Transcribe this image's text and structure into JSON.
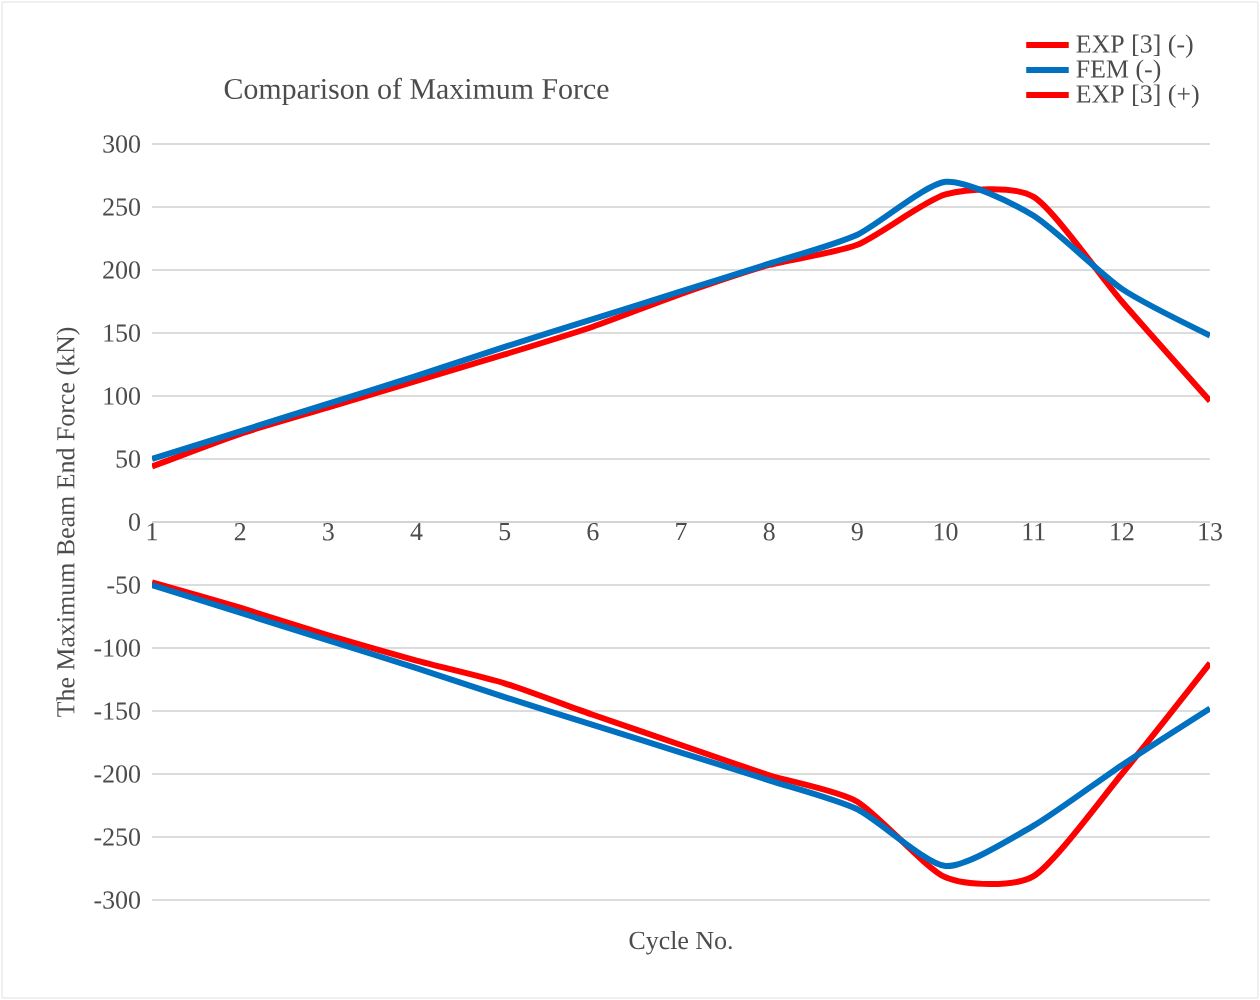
{
  "chart_data": {
    "type": "line",
    "title": "Comparison of Maximum Force",
    "xlabel": "Cycle No.",
    "ylabel": "The Maximum Beam End Force (kN)",
    "categories": [
      "1",
      "2",
      "3",
      "4",
      "5",
      "6",
      "7",
      "8",
      "9",
      "10",
      "11",
      "12",
      "13"
    ],
    "series": [
      {
        "name": "EXP [3] (-)",
        "color": "#ff0000",
        "values": [
          -48,
          -68,
          -90,
          -110,
          -128,
          -153,
          -177,
          -201,
          -222,
          -282,
          -281,
          -200,
          -112
        ]
      },
      {
        "name": "FEM (-)",
        "color": "#0070c0",
        "values": [
          -50,
          -72,
          -94,
          -116,
          -139,
          -161,
          -183,
          -205,
          -228,
          -273,
          -241,
          -193,
          -148
        ]
      },
      {
        "name": "EXP [3] (+)",
        "color": "#ff0000",
        "values": [
          44,
          70,
          91,
          112,
          133,
          155,
          181,
          204,
          220,
          260,
          258,
          175,
          96
        ]
      },
      {
        "color": "#0070c0",
        "values": [
          50,
          72,
          94,
          116,
          139,
          161,
          183,
          205,
          228,
          270,
          243,
          185,
          148
        ]
      }
    ],
    "ylim": [
      -300,
      300
    ],
    "yticks": [
      -300,
      -250,
      -200,
      -150,
      -100,
      -50,
      0,
      50,
      100,
      150,
      200,
      250,
      300
    ],
    "grid": "y",
    "legend": "top right"
  }
}
